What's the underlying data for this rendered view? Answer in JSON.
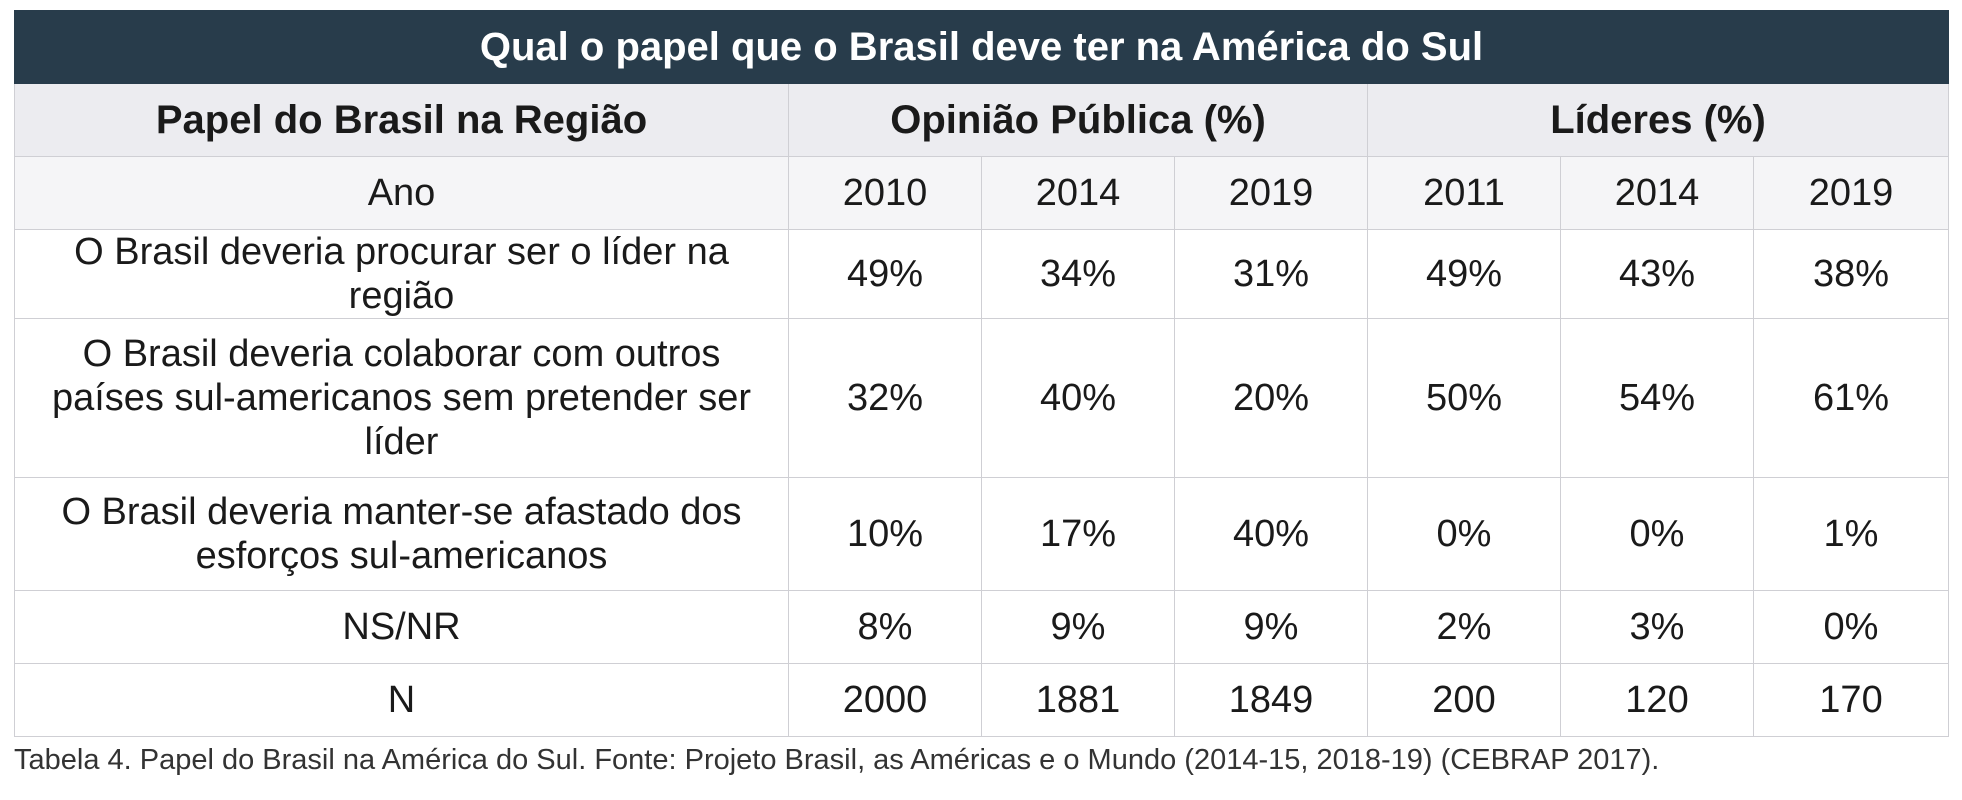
{
  "title": "Qual o papel que o Brasil deve ter na América do Sul",
  "headers": {
    "role": "Papel do Brasil na Região",
    "opinion": "Opinião Pública (%)",
    "leaders": "Líderes (%)",
    "year_label": "Ano"
  },
  "years": [
    "2010",
    "2014",
    "2019",
    "2011",
    "2014",
    "2019"
  ],
  "rows": [
    {
      "label": "O Brasil deveria procurar ser o líder na região",
      "values": [
        "49%",
        "34%",
        "31%",
        "49%",
        "43%",
        "38%"
      ]
    },
    {
      "label": "O Brasil deveria colaborar com outros países sul-americanos sem pretender ser líder",
      "values": [
        "32%",
        "40%",
        "20%",
        "50%",
        "54%",
        "61%"
      ]
    },
    {
      "label": "O Brasil deveria manter-se afastado dos esforços sul-americanos",
      "values": [
        "10%",
        "17%",
        "40%",
        "0%",
        "0%",
        "1%"
      ]
    },
    {
      "label": "NS/NR",
      "values": [
        "8%",
        "9%",
        "9%",
        "2%",
        "3%",
        "0%"
      ]
    },
    {
      "label": "N",
      "values": [
        "2000",
        "1881",
        "1849",
        "200",
        "120",
        "170"
      ]
    }
  ],
  "caption": "Tabela 4. Papel do Brasil na América do Sul. Fonte: Projeto Brasil, as Américas e o Mundo (2014-15, 2018-19) (CEBRAP 2017).",
  "colors": {
    "title_bg": "#283c4b",
    "header_bg": "#ececf0",
    "year_bg": "#f5f5f7",
    "border": "#cfcfd4"
  }
}
